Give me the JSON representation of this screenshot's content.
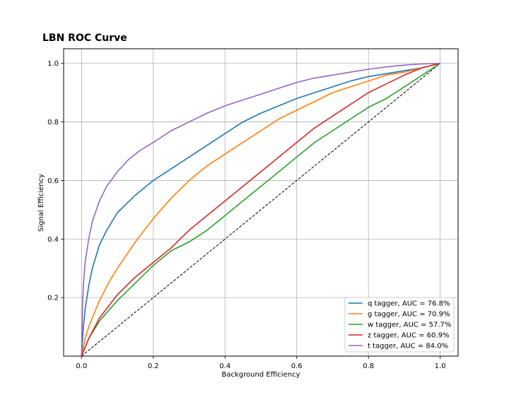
{
  "chart_data": {
    "type": "line",
    "title": "LBN ROC Curve",
    "xlabel": "Background Efficiency",
    "ylabel": "Signal Efficiency",
    "xlim": [
      -0.05,
      1.05
    ],
    "ylim": [
      0.0,
      1.05
    ],
    "xticks": [
      0.0,
      0.2,
      0.4,
      0.6,
      0.8,
      1.0
    ],
    "xtick_labels": [
      "0.0",
      "0.2",
      "0.4",
      "0.6",
      "0.8",
      "1.0"
    ],
    "yticks": [
      0.2,
      0.4,
      0.6,
      0.8,
      1.0
    ],
    "ytick_labels": [
      "0.2",
      "0.4",
      "0.6",
      "0.8",
      "1.0"
    ],
    "grid": true,
    "legend_position": "lower-right",
    "series": [
      {
        "name": "q tagger, AUC = 76.8%",
        "color": "#1f77b4",
        "x": [
          0.0,
          0.005,
          0.01,
          0.02,
          0.03,
          0.05,
          0.07,
          0.1,
          0.15,
          0.2,
          0.25,
          0.3,
          0.35,
          0.4,
          0.45,
          0.5,
          0.55,
          0.6,
          0.65,
          0.7,
          0.75,
          0.8,
          0.85,
          0.9,
          0.95,
          1.0
        ],
        "y": [
          0.0,
          0.1,
          0.16,
          0.24,
          0.3,
          0.38,
          0.43,
          0.49,
          0.55,
          0.6,
          0.64,
          0.68,
          0.72,
          0.76,
          0.8,
          0.83,
          0.855,
          0.88,
          0.9,
          0.92,
          0.94,
          0.955,
          0.965,
          0.975,
          0.985,
          1.0
        ]
      },
      {
        "name": "g tagger, AUC = 70.9%",
        "color": "#ff7f0e",
        "x": [
          0.0,
          0.01,
          0.02,
          0.05,
          0.08,
          0.1,
          0.15,
          0.2,
          0.25,
          0.3,
          0.35,
          0.4,
          0.45,
          0.5,
          0.55,
          0.6,
          0.65,
          0.7,
          0.75,
          0.8,
          0.85,
          0.9,
          0.95,
          1.0
        ],
        "y": [
          0.0,
          0.06,
          0.1,
          0.19,
          0.26,
          0.3,
          0.39,
          0.47,
          0.54,
          0.6,
          0.65,
          0.69,
          0.73,
          0.77,
          0.81,
          0.84,
          0.87,
          0.9,
          0.92,
          0.94,
          0.96,
          0.97,
          0.985,
          1.0
        ]
      },
      {
        "name": "w tagger, AUC = 57.7%",
        "color": "#2ca02c",
        "x": [
          0.0,
          0.02,
          0.05,
          0.1,
          0.15,
          0.2,
          0.25,
          0.3,
          0.35,
          0.4,
          0.45,
          0.5,
          0.55,
          0.6,
          0.65,
          0.7,
          0.75,
          0.8,
          0.85,
          0.9,
          0.95,
          1.0
        ],
        "y": [
          0.0,
          0.06,
          0.12,
          0.19,
          0.25,
          0.31,
          0.36,
          0.39,
          0.43,
          0.48,
          0.53,
          0.58,
          0.63,
          0.68,
          0.73,
          0.77,
          0.81,
          0.85,
          0.88,
          0.92,
          0.96,
          1.0
        ]
      },
      {
        "name": "z tagger, AUC = 60.9%",
        "color": "#d62728",
        "x": [
          0.0,
          0.02,
          0.05,
          0.1,
          0.15,
          0.2,
          0.25,
          0.3,
          0.35,
          0.4,
          0.45,
          0.5,
          0.55,
          0.6,
          0.65,
          0.7,
          0.75,
          0.8,
          0.85,
          0.9,
          0.95,
          1.0
        ],
        "y": [
          0.0,
          0.06,
          0.13,
          0.21,
          0.27,
          0.32,
          0.37,
          0.43,
          0.48,
          0.53,
          0.58,
          0.63,
          0.68,
          0.73,
          0.78,
          0.82,
          0.86,
          0.9,
          0.93,
          0.96,
          0.985,
          1.0
        ]
      },
      {
        "name": "t tagger, AUC = 84.0%",
        "color": "#9467bd",
        "x": [
          0.0,
          0.002,
          0.005,
          0.01,
          0.02,
          0.03,
          0.05,
          0.07,
          0.1,
          0.13,
          0.16,
          0.2,
          0.25,
          0.3,
          0.35,
          0.4,
          0.45,
          0.5,
          0.55,
          0.6,
          0.65,
          0.7,
          0.75,
          0.8,
          0.85,
          0.9,
          0.95,
          1.0
        ],
        "y": [
          0.0,
          0.15,
          0.24,
          0.32,
          0.4,
          0.46,
          0.53,
          0.58,
          0.63,
          0.67,
          0.7,
          0.73,
          0.77,
          0.8,
          0.83,
          0.855,
          0.875,
          0.895,
          0.915,
          0.935,
          0.95,
          0.96,
          0.97,
          0.98,
          0.988,
          0.994,
          0.998,
          1.0
        ]
      }
    ],
    "reference_line": {
      "x": [
        0.0,
        1.0
      ],
      "y": [
        0.0,
        1.0
      ],
      "color": "#000000",
      "style": "dashed"
    }
  }
}
